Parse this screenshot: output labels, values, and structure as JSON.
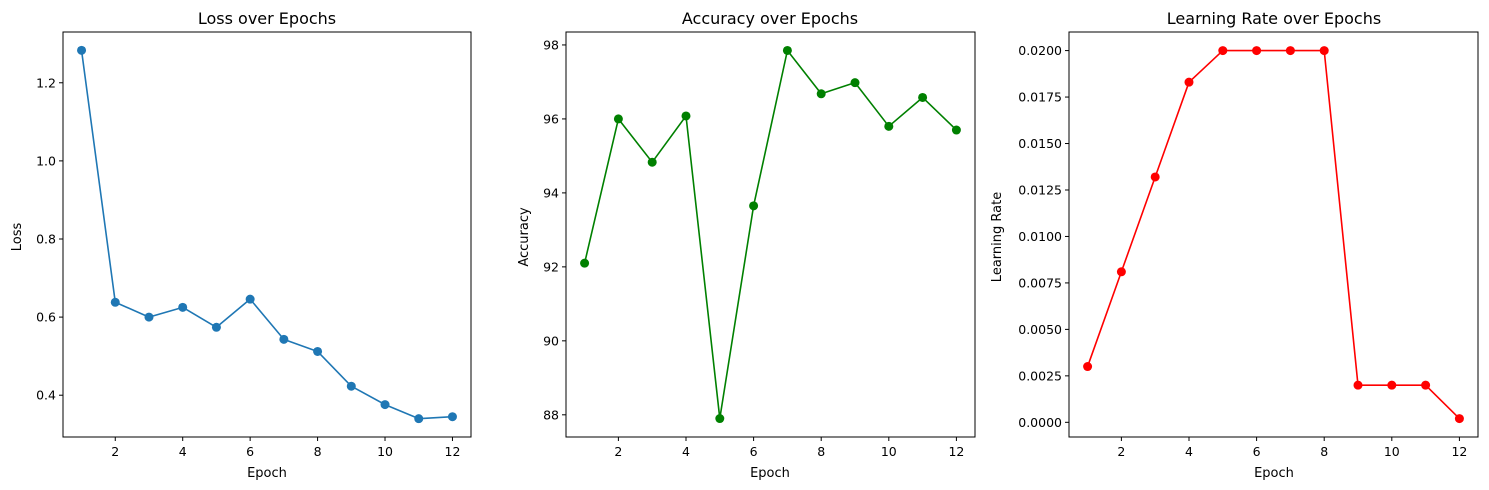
{
  "chart_data": [
    {
      "type": "line",
      "title": "Loss over Epochs",
      "xlabel": "Epoch",
      "ylabel": "Loss",
      "x": [
        1,
        2,
        3,
        4,
        5,
        6,
        7,
        8,
        9,
        10,
        11,
        12
      ],
      "series": [
        {
          "color": "#1f77b4",
          "values": [
            1.283,
            0.638,
            0.6,
            0.625,
            0.574,
            0.646,
            0.543,
            0.512,
            0.423,
            0.376,
            0.34,
            0.345
          ]
        }
      ],
      "xlim": [
        0.45,
        12.55
      ],
      "ylim": [
        0.293,
        1.33
      ],
      "xticks": [
        2,
        4,
        6,
        8,
        10,
        12
      ],
      "xtick_labels": [
        "2",
        "4",
        "6",
        "8",
        "10",
        "12"
      ],
      "yticks": [
        0.4,
        0.6,
        0.8,
        1.0,
        1.2
      ],
      "ytick_labels": [
        "0.4",
        "0.6",
        "0.8",
        "1.0",
        "1.2"
      ],
      "grid": false
    },
    {
      "type": "line",
      "title": "Accuracy over Epochs",
      "xlabel": "Epoch",
      "ylabel": "Accuracy",
      "x": [
        1,
        2,
        3,
        4,
        5,
        6,
        7,
        8,
        9,
        10,
        11,
        12
      ],
      "series": [
        {
          "color": "#008000",
          "values": [
            92.1,
            96.0,
            94.83,
            96.08,
            87.9,
            93.65,
            97.85,
            96.68,
            96.98,
            95.8,
            96.58,
            95.7
          ]
        }
      ],
      "xlim": [
        0.45,
        12.55
      ],
      "ylim": [
        87.4,
        98.35
      ],
      "xticks": [
        2,
        4,
        6,
        8,
        10,
        12
      ],
      "xtick_labels": [
        "2",
        "4",
        "6",
        "8",
        "10",
        "12"
      ],
      "yticks": [
        88,
        90,
        92,
        94,
        96,
        98
      ],
      "ytick_labels": [
        "88",
        "90",
        "92",
        "94",
        "96",
        "98"
      ],
      "grid": false
    },
    {
      "type": "line",
      "title": "Learning Rate over Epochs",
      "xlabel": "Epoch",
      "ylabel": "Learning Rate",
      "x": [
        1,
        2,
        3,
        4,
        5,
        6,
        7,
        8,
        9,
        10,
        11,
        12
      ],
      "series": [
        {
          "color": "#ff0000",
          "values": [
            0.003,
            0.0081,
            0.0132,
            0.0183,
            0.02,
            0.02,
            0.02,
            0.02,
            0.002,
            0.002,
            0.002,
            0.0002
          ]
        }
      ],
      "xlim": [
        0.45,
        12.55
      ],
      "ylim": [
        -0.00079,
        0.021
      ],
      "xticks": [
        2,
        4,
        6,
        8,
        10,
        12
      ],
      "xtick_labels": [
        "2",
        "4",
        "6",
        "8",
        "10",
        "12"
      ],
      "yticks": [
        0.0,
        0.0025,
        0.005,
        0.0075,
        0.01,
        0.0125,
        0.015,
        0.0175,
        0.02
      ],
      "ytick_labels": [
        "0.0000",
        "0.0025",
        "0.0050",
        "0.0075",
        "0.0100",
        "0.0125",
        "0.0150",
        "0.0175",
        "0.0200"
      ],
      "grid": false
    }
  ]
}
